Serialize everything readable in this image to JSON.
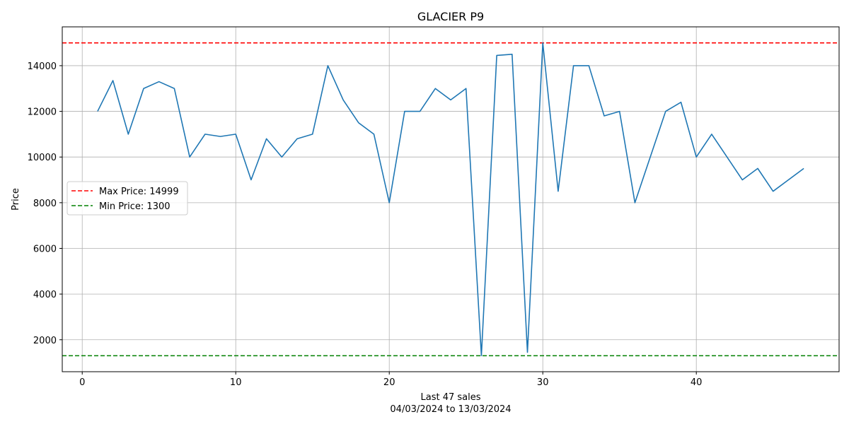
{
  "chart_data": {
    "type": "line",
    "title": "GLACIER P9",
    "xlabel": "Last 47 sales",
    "xlabel_line2": "04/03/2024 to 13/03/2024",
    "ylabel": "Price",
    "xlim": [
      -1.3,
      49.3
    ],
    "ylim": [
      600,
      15700
    ],
    "x_ticks": [
      0,
      10,
      20,
      30,
      40
    ],
    "y_ticks": [
      2000,
      4000,
      6000,
      8000,
      10000,
      12000,
      14000
    ],
    "grid": true,
    "legend_position": "center-left",
    "series": [
      {
        "color": "#1f77b4",
        "x": [
          1,
          2,
          3,
          4,
          5,
          6,
          7,
          8,
          9,
          10,
          11,
          12,
          13,
          14,
          15,
          16,
          17,
          18,
          19,
          20,
          21,
          22,
          23,
          24,
          25,
          26,
          27,
          28,
          29,
          30,
          31,
          32,
          33,
          34,
          35,
          36,
          37,
          38,
          39,
          40,
          41,
          42,
          43,
          44,
          45,
          46,
          47
        ],
        "values": [
          12000,
          13350,
          11000,
          13000,
          13300,
          13000,
          10000,
          11000,
          10900,
          11000,
          9000,
          10800,
          10000,
          10800,
          11000,
          14000,
          12500,
          11500,
          11000,
          8000,
          12000,
          12000,
          13000,
          12500,
          13000,
          1300,
          14450,
          14500,
          1450,
          14999,
          8500,
          14000,
          14000,
          11800,
          12000,
          8000,
          10000,
          12000,
          12400,
          10000,
          11000,
          10000,
          9000,
          9500,
          8500,
          9000,
          9500
        ]
      }
    ],
    "reference_lines": [
      {
        "label": "Max Price: 14999",
        "value": 14999,
        "color": "#ff0000"
      },
      {
        "label": "Min Price: 1300",
        "value": 1300,
        "color": "#008000"
      }
    ]
  }
}
